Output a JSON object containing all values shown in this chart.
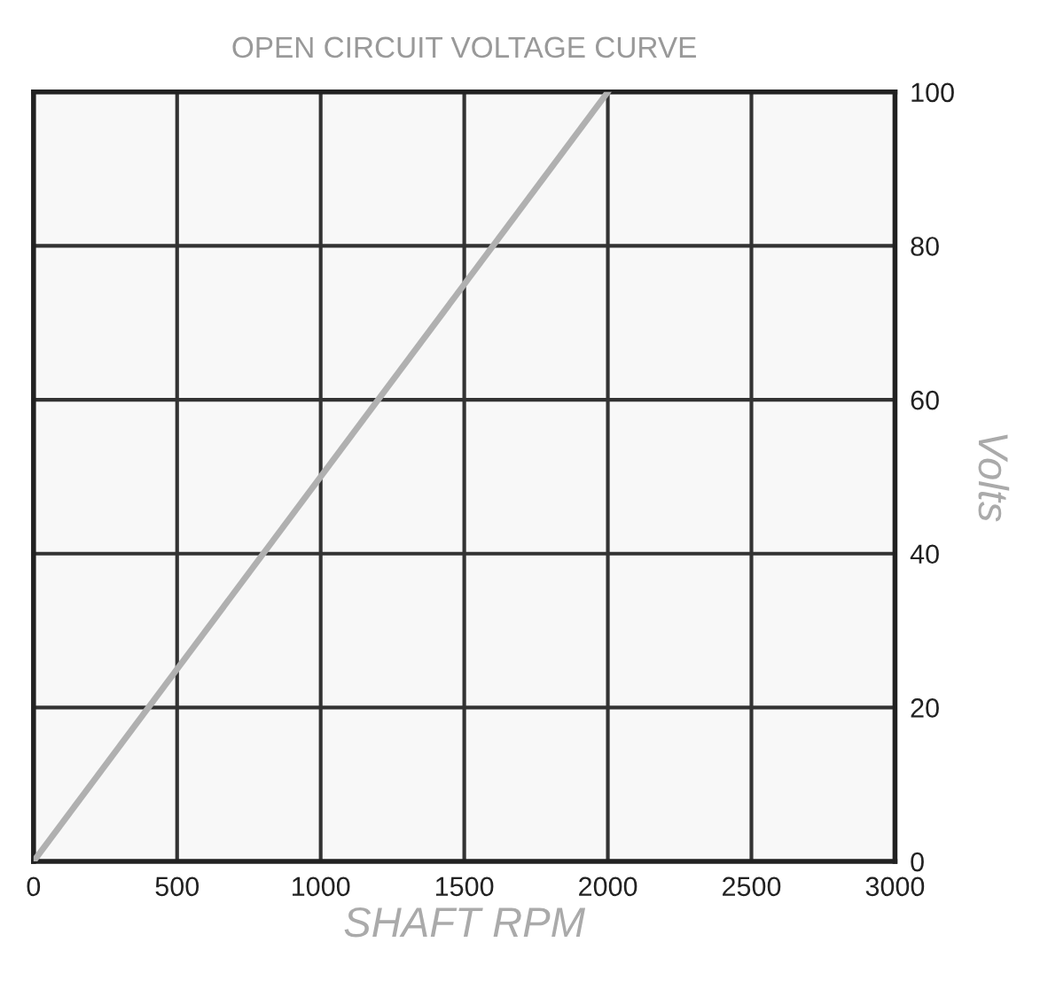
{
  "chart_data": {
    "type": "line",
    "title": "OPEN CIRCUIT VOLTAGE CURVE",
    "xlabel": "SHAFT RPM",
    "ylabel": "Volts",
    "x": [
      0,
      2000
    ],
    "series": [
      {
        "color": "#b0b0b0",
        "values": [
          0,
          100
        ]
      }
    ],
    "xlim": [
      0,
      3000
    ],
    "xticks": [
      0,
      500,
      1000,
      1500,
      2000,
      2500,
      3000
    ],
    "ylim": [
      0,
      100
    ],
    "yticks": [
      0,
      20,
      40,
      60,
      80,
      100
    ],
    "grid": true,
    "marker": "none",
    "line_style": "solid"
  }
}
